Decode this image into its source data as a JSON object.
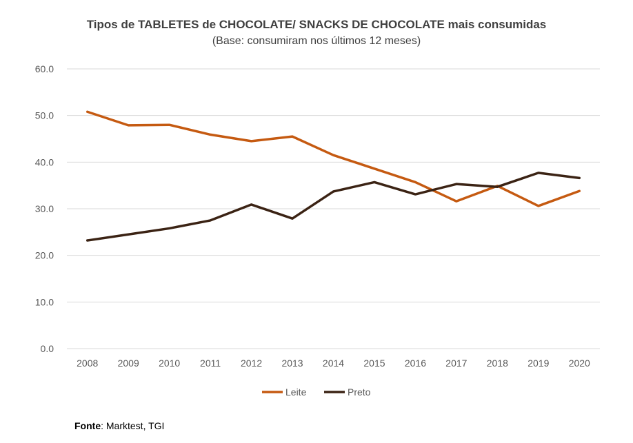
{
  "chart_data": {
    "type": "line",
    "title": "Tipos de TABLETES de CHOCOLATE/ SNACKS DE CHOCOLATE mais consumidas",
    "subtitle": "(Base: consumiram nos últimos 12 meses)",
    "xlabel": "",
    "ylabel": "",
    "ylim": [
      0,
      60
    ],
    "yticks": [
      "0.0",
      "10.0",
      "20.0",
      "30.0",
      "40.0",
      "50.0",
      "60.0"
    ],
    "grid": true,
    "legend": "bottom",
    "categories": [
      "2008",
      "2009",
      "2010",
      "2011",
      "2012",
      "2013",
      "2014",
      "2015",
      "2016",
      "2017",
      "2018",
      "2019",
      "2020"
    ],
    "series": [
      {
        "name": "Leite",
        "color": "#C55A11",
        "values": [
          50.8,
          47.9,
          48.0,
          45.9,
          44.5,
          45.5,
          41.5,
          38.6,
          35.7,
          31.6,
          34.9,
          30.6,
          33.8
        ]
      },
      {
        "name": "Preto",
        "color": "#3B2314",
        "values": [
          23.2,
          24.5,
          25.8,
          27.5,
          30.9,
          27.9,
          33.7,
          35.7,
          33.1,
          35.3,
          34.7,
          37.7,
          36.6
        ]
      }
    ]
  },
  "source": {
    "label": "Fonte",
    "text": ": Marktest, TGI"
  }
}
